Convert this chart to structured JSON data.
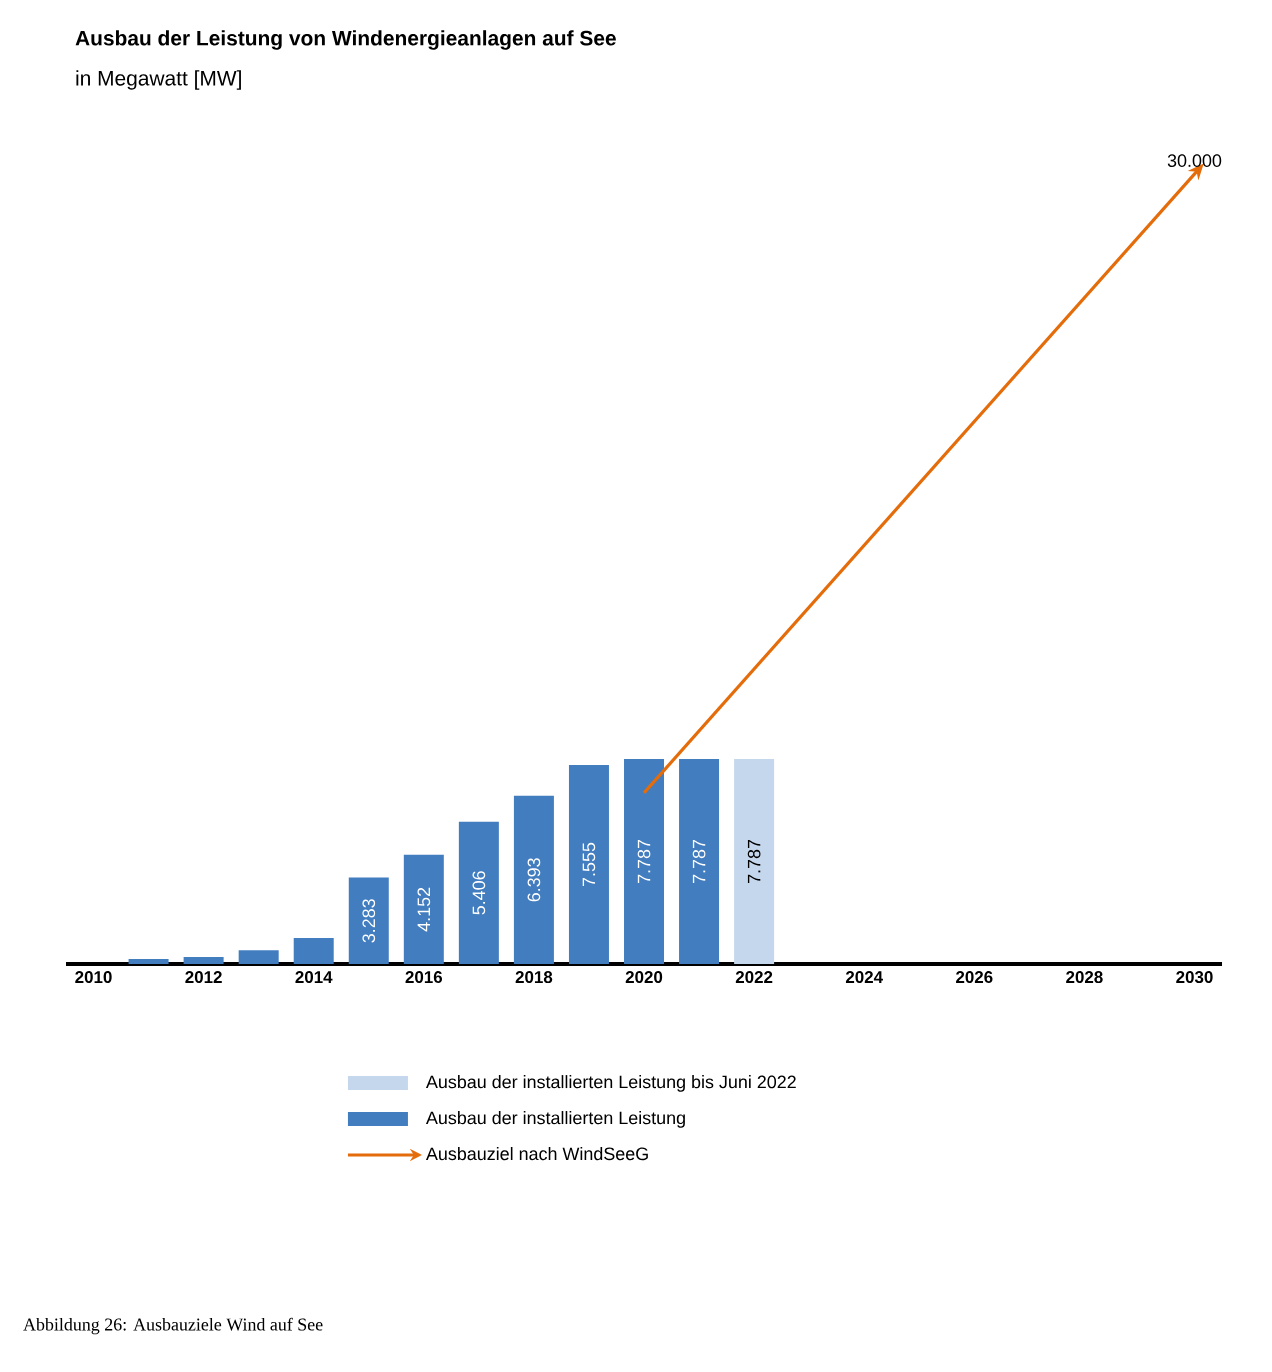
{
  "chart_data": {
    "type": "bar",
    "title": "Ausbau der Leistung von Windenergieanlagen auf See",
    "subtitle": "in Megawatt [MW]",
    "xlim": [
      2009.5,
      2030.5
    ],
    "xticks": [
      2010,
      2012,
      2014,
      2016,
      2018,
      2020,
      2022,
      2024,
      2026,
      2028,
      2030
    ],
    "tick_labels": "x",
    "legend": "bottom",
    "grid": false,
    "series": [
      {
        "name": "Ausbau der installierten Leistung bis Juni 2022",
        "color": "#c5d7ec",
        "x": [
          2022
        ],
        "values": [
          7787
        ],
        "value_labels": [
          "7.787"
        ]
      },
      {
        "name": "Ausbau der installierten Leistung",
        "color": "#427dbf",
        "x": [
          2011,
          2012,
          2013,
          2014,
          2015,
          2016,
          2017,
          2018,
          2019,
          2020,
          2021
        ],
        "values": [
          190,
          270,
          520,
          990,
          3283,
          4152,
          5406,
          6393,
          7555,
          7787,
          7787
        ],
        "value_labels": [
          null,
          null,
          null,
          null,
          "3.283",
          "4.152",
          "5.406",
          "6.393",
          "7.555",
          "7.787",
          "7.787"
        ]
      },
      {
        "name": "Ausbauziel nach WindSeeG",
        "type": "line",
        "color": "#e46c0a",
        "line_style": "solid",
        "x": [
          2020,
          2030
        ],
        "values": [
          6500,
          30000
        ]
      }
    ],
    "annotations": [
      {
        "text": "30.000",
        "x": 2030,
        "y": 30000
      },
      "Abbildung 26: Ausbauziele Wind auf See"
    ]
  }
}
